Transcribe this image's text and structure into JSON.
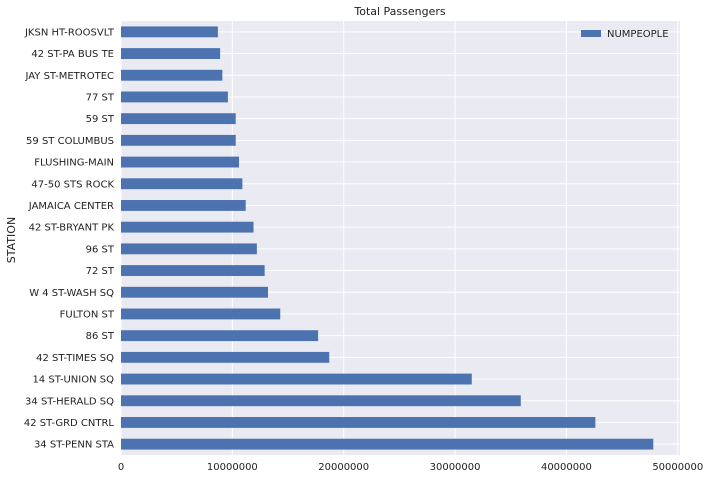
{
  "chart_data": {
    "type": "bar",
    "orientation": "horizontal",
    "title": "Total Passengers",
    "xlabel": "",
    "ylabel": "STATION",
    "xlim": [
      0,
      50200000
    ],
    "xticks": [
      0,
      10000000,
      20000000,
      30000000,
      40000000,
      50000000
    ],
    "xtick_labels": [
      "0",
      "10000000",
      "20000000",
      "30000000",
      "40000000",
      "50000000"
    ],
    "grid": true,
    "legend": "top-right",
    "categories": [
      "34 ST-PENN STA",
      "42 ST-GRD CNTRL",
      "34 ST-HERALD SQ",
      "14 ST-UNION SQ",
      "42 ST-TIMES SQ",
      "86 ST",
      "FULTON ST",
      "W 4 ST-WASH SQ",
      "72 ST",
      "96 ST",
      "42 ST-BRYANT PK",
      "JAMAICA CENTER",
      "47-50 STS ROCK",
      "FLUSHING-MAIN",
      "59 ST COLUMBUS",
      "59 ST",
      "77 ST",
      "JAY ST-METROTEC",
      "42 ST-PA BUS TE",
      "JKSN HT-ROOSVLT"
    ],
    "series": [
      {
        "name": "NUMPEOPLE",
        "color": "#4C72B0",
        "values": [
          47800000,
          42600000,
          35900000,
          31500000,
          18700000,
          17700000,
          14300000,
          13200000,
          12900000,
          12200000,
          11900000,
          11200000,
          10900000,
          10600000,
          10300000,
          10300000,
          9600000,
          9100000,
          8900000,
          8700000
        ]
      }
    ]
  },
  "colors": {
    "plot_bg": "#EAEAF2",
    "grid": "#FFFFFF",
    "bar": "#4C72B0",
    "text": "#222222"
  }
}
